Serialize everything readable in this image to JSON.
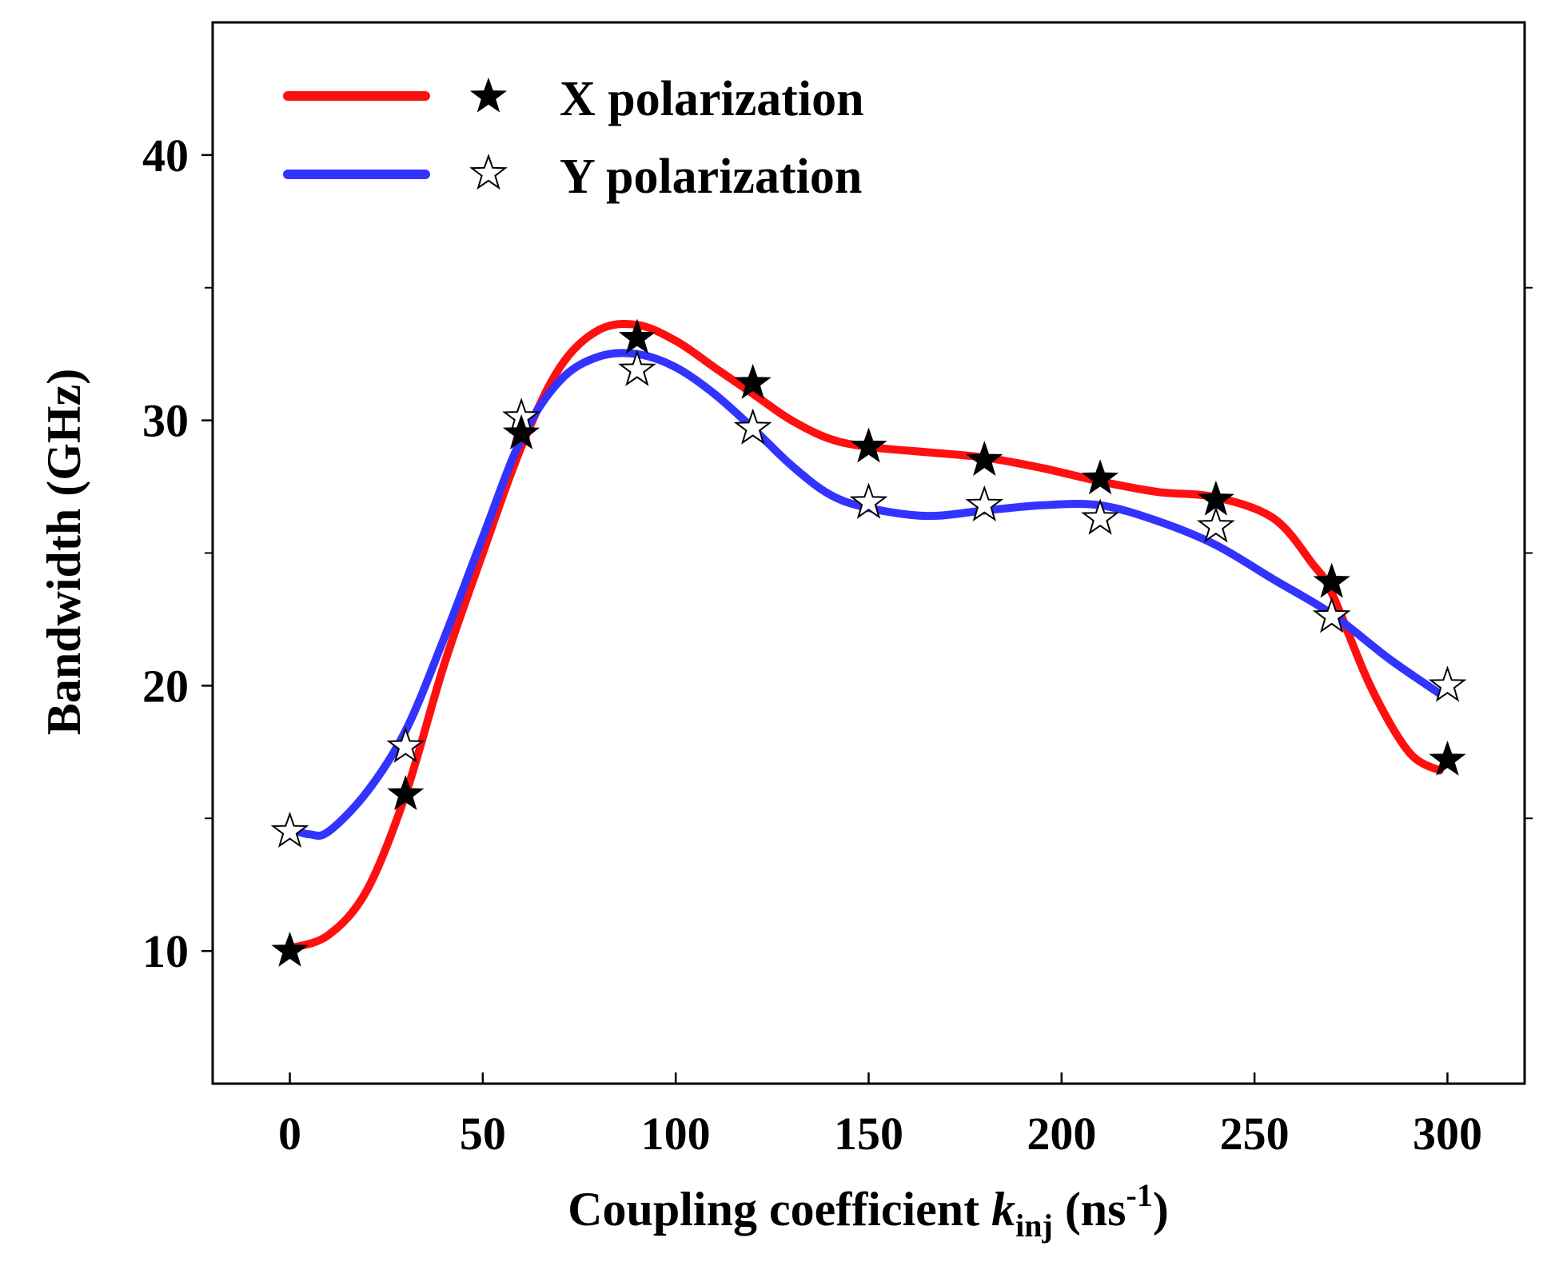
{
  "chart_data": {
    "type": "line",
    "title": "",
    "xlabel": {
      "prefix": "Coupling coefficient ",
      "variable": "k",
      "subscript": "inj",
      "unit_open": " (ns",
      "superscript": "-1",
      "unit_close": ")"
    },
    "ylabel": "Bandwidth (GHz)",
    "xlim": [
      -20,
      320
    ],
    "ylim": [
      5,
      45
    ],
    "xticks": [
      0,
      50,
      100,
      150,
      200,
      250,
      300
    ],
    "yticks_labeled": [
      10,
      20,
      30,
      40
    ],
    "yticks_minor": [
      15,
      25,
      35
    ],
    "grid": false,
    "legend_position": "top-left",
    "x": [
      0,
      30,
      60,
      90,
      120,
      150,
      180,
      210,
      240,
      270,
      300
    ],
    "series": [
      {
        "name": "X polarization",
        "color": "#ff1010",
        "marker": "filled-star",
        "values": [
          10.0,
          15.9,
          29.5,
          33.1,
          31.4,
          29.0,
          28.5,
          27.8,
          27.0,
          23.9,
          17.2
        ],
        "fit_curve": [
          [
            0,
            10.1
          ],
          [
            10,
            10.6
          ],
          [
            20,
            12.3
          ],
          [
            30,
            15.9
          ],
          [
            40,
            20.8
          ],
          [
            50,
            25.0
          ],
          [
            60,
            29.0
          ],
          [
            70,
            32.0
          ],
          [
            80,
            33.4
          ],
          [
            90,
            33.6
          ],
          [
            100,
            33.0
          ],
          [
            110,
            32.0
          ],
          [
            120,
            31.0
          ],
          [
            130,
            30.0
          ],
          [
            140,
            29.3
          ],
          [
            150,
            29.0
          ],
          [
            165,
            28.8
          ],
          [
            180,
            28.6
          ],
          [
            195,
            28.2
          ],
          [
            210,
            27.7
          ],
          [
            225,
            27.3
          ],
          [
            240,
            27.1
          ],
          [
            255,
            26.3
          ],
          [
            265,
            24.6
          ],
          [
            270,
            23.5
          ],
          [
            280,
            20.0
          ],
          [
            290,
            17.5
          ],
          [
            298,
            16.8
          ]
        ]
      },
      {
        "name": "Y polarization",
        "color": "#3333ff",
        "marker": "open-star",
        "values": [
          14.5,
          17.7,
          30.1,
          31.9,
          29.7,
          26.9,
          26.8,
          26.3,
          26.0,
          22.6,
          20.0
        ],
        "fit_curve": [
          [
            0,
            14.6
          ],
          [
            5,
            14.4
          ],
          [
            10,
            14.5
          ],
          [
            20,
            16.0
          ],
          [
            30,
            18.3
          ],
          [
            40,
            21.8
          ],
          [
            50,
            25.6
          ],
          [
            60,
            29.3
          ],
          [
            70,
            31.5
          ],
          [
            80,
            32.4
          ],
          [
            90,
            32.5
          ],
          [
            100,
            32.0
          ],
          [
            110,
            31.0
          ],
          [
            120,
            29.7
          ],
          [
            130,
            28.3
          ],
          [
            140,
            27.2
          ],
          [
            150,
            26.7
          ],
          [
            165,
            26.4
          ],
          [
            180,
            26.6
          ],
          [
            195,
            26.8
          ],
          [
            210,
            26.8
          ],
          [
            225,
            26.2
          ],
          [
            240,
            25.3
          ],
          [
            255,
            24.0
          ],
          [
            270,
            22.7
          ],
          [
            285,
            21.0
          ],
          [
            298,
            19.7
          ]
        ]
      }
    ]
  }
}
